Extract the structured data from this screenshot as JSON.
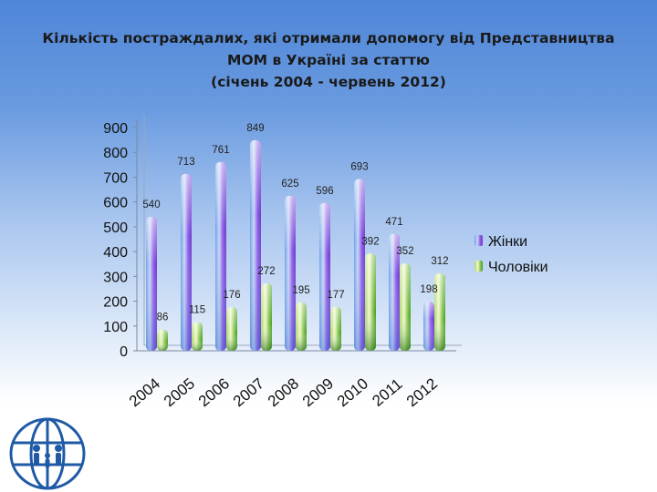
{
  "title_lines": [
    "Кількість постраждалих, які отримали допомогу від Представництва",
    "МОМ в Україні за статтю",
    "(січень 2004 - червень 2012)"
  ],
  "colors": {
    "women": "#9b6cf0",
    "men": "#7cc24a"
  },
  "chart_data": {
    "type": "bar",
    "categories": [
      "2004",
      "2005",
      "2006",
      "2007",
      "2008",
      "2009",
      "2010",
      "2011",
      "2012"
    ],
    "series": [
      {
        "name": "Жінки",
        "values": [
          540,
          713,
          761,
          849,
          625,
          596,
          693,
          471,
          198
        ]
      },
      {
        "name": "Чоловіки",
        "values": [
          86,
          115,
          176,
          272,
          195,
          177,
          392,
          352,
          312
        ]
      }
    ],
    "ylim": [
      0,
      900
    ],
    "yticks": [
      0,
      100,
      200,
      300,
      400,
      500,
      600,
      700,
      800,
      900
    ],
    "legend_position": "right",
    "grid": false
  }
}
